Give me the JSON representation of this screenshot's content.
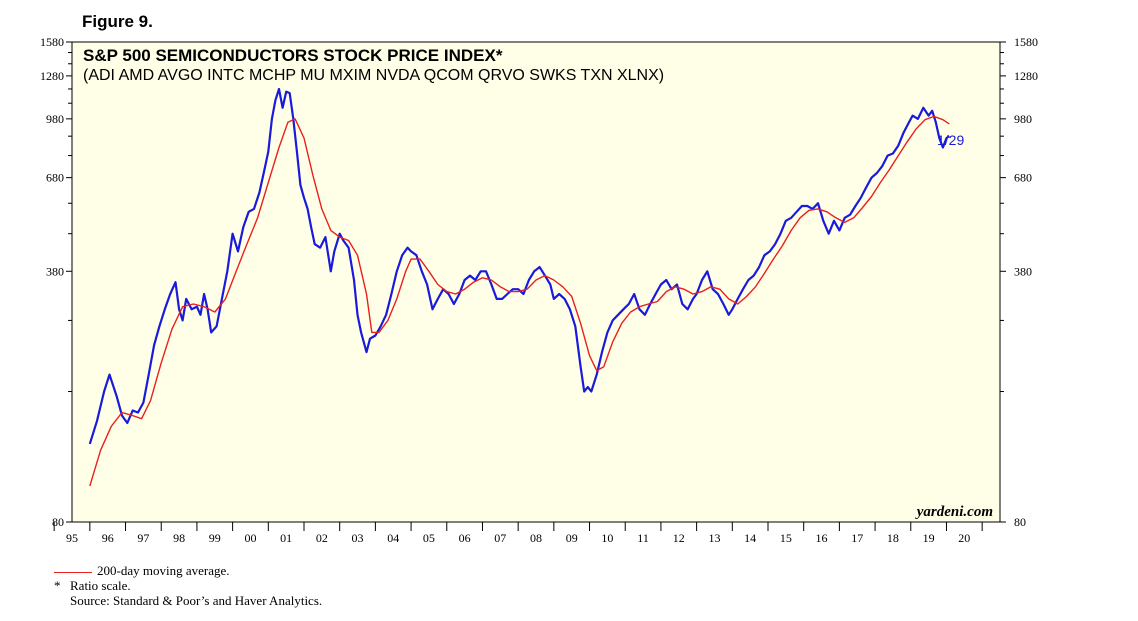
{
  "figure_label": "Figure 9.",
  "source_brand": "yardeni.com",
  "footnotes": {
    "ma_legend": "200-day moving average.",
    "note_mark": "*",
    "note": "Ratio scale.",
    "source": "Source: Standard & Poor’s and Haver Analytics."
  },
  "colors": {
    "price_line": "#1a1adc",
    "ma_line": "#e8201e",
    "plot_background": "#ffffe8"
  },
  "chart_data": {
    "type": "line",
    "title": "S&P 500 SEMICONDUCTORS STOCK PRICE INDEX*",
    "subtitle": "(ADI AMD AVGO INTC MCHP MU MXIM NVDA QCOM QRVO SWKS TXN XLNX)",
    "y_scale": "log",
    "ylim": [
      80,
      1580
    ],
    "y_ticks": [
      80,
      380,
      680,
      980,
      1280,
      1580
    ],
    "y_minor_ticks": [
      180,
      280,
      480,
      580,
      780,
      880,
      1080,
      1180,
      1380,
      1480
    ],
    "xlim": [
      1994.5,
      2020.5
    ],
    "x_tick_labels": [
      "95",
      "96",
      "97",
      "98",
      "99",
      "00",
      "01",
      "02",
      "03",
      "04",
      "05",
      "06",
      "07",
      "08",
      "09",
      "10",
      "11",
      "12",
      "13",
      "14",
      "15",
      "16",
      "17",
      "18",
      "19",
      "20"
    ],
    "annotation": "1/29",
    "series": [
      {
        "name": "",
        "points": [
          [
            1995.0,
            130
          ],
          [
            1995.2,
            150
          ],
          [
            1995.4,
            180
          ],
          [
            1995.55,
            200
          ],
          [
            1995.75,
            175
          ],
          [
            1995.9,
            155
          ],
          [
            1996.05,
            148
          ],
          [
            1996.2,
            160
          ],
          [
            1996.35,
            158
          ],
          [
            1996.5,
            168
          ],
          [
            1996.65,
            200
          ],
          [
            1996.8,
            240
          ],
          [
            1996.95,
            270
          ],
          [
            1997.1,
            300
          ],
          [
            1997.25,
            330
          ],
          [
            1997.4,
            355
          ],
          [
            1997.5,
            300
          ],
          [
            1997.6,
            280
          ],
          [
            1997.7,
            320
          ],
          [
            1997.85,
            300
          ],
          [
            1998.0,
            305
          ],
          [
            1998.1,
            290
          ],
          [
            1998.2,
            330
          ],
          [
            1998.3,
            300
          ],
          [
            1998.4,
            260
          ],
          [
            1998.55,
            270
          ],
          [
            1998.7,
            320
          ],
          [
            1998.85,
            380
          ],
          [
            1999.0,
            480
          ],
          [
            1999.15,
            430
          ],
          [
            1999.3,
            500
          ],
          [
            1999.45,
            550
          ],
          [
            1999.6,
            560
          ],
          [
            1999.75,
            620
          ],
          [
            1999.9,
            720
          ],
          [
            2000.0,
            800
          ],
          [
            2000.1,
            980
          ],
          [
            2000.2,
            1100
          ],
          [
            2000.3,
            1180
          ],
          [
            2000.4,
            1050
          ],
          [
            2000.5,
            1160
          ],
          [
            2000.6,
            1150
          ],
          [
            2000.7,
            980
          ],
          [
            2000.8,
            800
          ],
          [
            2000.9,
            650
          ],
          [
            2001.0,
            600
          ],
          [
            2001.1,
            560
          ],
          [
            2001.2,
            500
          ],
          [
            2001.3,
            450
          ],
          [
            2001.45,
            440
          ],
          [
            2001.6,
            470
          ],
          [
            2001.75,
            380
          ],
          [
            2001.85,
            430
          ],
          [
            2002.0,
            480
          ],
          [
            2002.1,
            460
          ],
          [
            2002.25,
            440
          ],
          [
            2002.4,
            360
          ],
          [
            2002.5,
            290
          ],
          [
            2002.6,
            260
          ],
          [
            2002.75,
            230
          ],
          [
            2002.85,
            250
          ],
          [
            2003.0,
            255
          ],
          [
            2003.15,
            270
          ],
          [
            2003.3,
            290
          ],
          [
            2003.45,
            330
          ],
          [
            2003.6,
            380
          ],
          [
            2003.75,
            420
          ],
          [
            2003.9,
            440
          ],
          [
            2004.0,
            430
          ],
          [
            2004.15,
            420
          ],
          [
            2004.3,
            380
          ],
          [
            2004.45,
            350
          ],
          [
            2004.6,
            300
          ],
          [
            2004.75,
            320
          ],
          [
            2004.9,
            340
          ],
          [
            2005.05,
            330
          ],
          [
            2005.2,
            310
          ],
          [
            2005.35,
            330
          ],
          [
            2005.5,
            360
          ],
          [
            2005.65,
            370
          ],
          [
            2005.8,
            360
          ],
          [
            2005.95,
            380
          ],
          [
            2006.1,
            380
          ],
          [
            2006.25,
            350
          ],
          [
            2006.4,
            320
          ],
          [
            2006.55,
            320
          ],
          [
            2006.7,
            330
          ],
          [
            2006.85,
            340
          ],
          [
            2007.0,
            340
          ],
          [
            2007.15,
            330
          ],
          [
            2007.3,
            360
          ],
          [
            2007.45,
            380
          ],
          [
            2007.6,
            390
          ],
          [
            2007.75,
            370
          ],
          [
            2007.9,
            350
          ],
          [
            2008.0,
            320
          ],
          [
            2008.15,
            330
          ],
          [
            2008.3,
            320
          ],
          [
            2008.45,
            300
          ],
          [
            2008.6,
            270
          ],
          [
            2008.75,
            210
          ],
          [
            2008.85,
            180
          ],
          [
            2008.95,
            185
          ],
          [
            2009.05,
            180
          ],
          [
            2009.2,
            200
          ],
          [
            2009.35,
            230
          ],
          [
            2009.5,
            260
          ],
          [
            2009.65,
            280
          ],
          [
            2009.8,
            290
          ],
          [
            2009.95,
            300
          ],
          [
            2010.1,
            310
          ],
          [
            2010.25,
            330
          ],
          [
            2010.4,
            300
          ],
          [
            2010.55,
            290
          ],
          [
            2010.7,
            310
          ],
          [
            2010.85,
            330
          ],
          [
            2011.0,
            350
          ],
          [
            2011.15,
            360
          ],
          [
            2011.3,
            340
          ],
          [
            2011.45,
            350
          ],
          [
            2011.6,
            310
          ],
          [
            2011.75,
            300
          ],
          [
            2011.9,
            320
          ],
          [
            2012.0,
            330
          ],
          [
            2012.15,
            360
          ],
          [
            2012.3,
            380
          ],
          [
            2012.45,
            340
          ],
          [
            2012.6,
            330
          ],
          [
            2012.75,
            310
          ],
          [
            2012.9,
            290
          ],
          [
            2013.0,
            300
          ],
          [
            2013.15,
            320
          ],
          [
            2013.3,
            340
          ],
          [
            2013.45,
            360
          ],
          [
            2013.6,
            370
          ],
          [
            2013.75,
            390
          ],
          [
            2013.9,
            420
          ],
          [
            2014.05,
            430
          ],
          [
            2014.2,
            450
          ],
          [
            2014.35,
            480
          ],
          [
            2014.5,
            520
          ],
          [
            2014.65,
            530
          ],
          [
            2014.8,
            550
          ],
          [
            2014.95,
            570
          ],
          [
            2015.1,
            570
          ],
          [
            2015.25,
            560
          ],
          [
            2015.4,
            580
          ],
          [
            2015.55,
            520
          ],
          [
            2015.7,
            480
          ],
          [
            2015.85,
            520
          ],
          [
            2016.0,
            490
          ],
          [
            2016.15,
            530
          ],
          [
            2016.3,
            540
          ],
          [
            2016.45,
            570
          ],
          [
            2016.6,
            600
          ],
          [
            2016.75,
            640
          ],
          [
            2016.9,
            680
          ],
          [
            2017.05,
            700
          ],
          [
            2017.2,
            730
          ],
          [
            2017.35,
            780
          ],
          [
            2017.5,
            790
          ],
          [
            2017.65,
            830
          ],
          [
            2017.8,
            900
          ],
          [
            2017.95,
            960
          ],
          [
            2018.05,
            1000
          ],
          [
            2018.2,
            980
          ],
          [
            2018.35,
            1050
          ],
          [
            2018.5,
            1000
          ],
          [
            2018.6,
            1030
          ],
          [
            2018.7,
            960
          ],
          [
            2018.8,
            870
          ],
          [
            2018.9,
            820
          ],
          [
            2019.0,
            870
          ],
          [
            2019.08,
            880
          ]
        ]
      },
      {
        "name": "200-day moving average.",
        "points": [
          [
            1995.0,
            100
          ],
          [
            1995.3,
            125
          ],
          [
            1995.6,
            145
          ],
          [
            1995.9,
            158
          ],
          [
            1996.2,
            155
          ],
          [
            1996.45,
            152
          ],
          [
            1996.7,
            170
          ],
          [
            1997.0,
            215
          ],
          [
            1997.3,
            265
          ],
          [
            1997.6,
            305
          ],
          [
            1997.9,
            310
          ],
          [
            1998.2,
            305
          ],
          [
            1998.5,
            295
          ],
          [
            1998.8,
            320
          ],
          [
            1999.1,
            380
          ],
          [
            1999.4,
            450
          ],
          [
            1999.7,
            530
          ],
          [
            2000.0,
            660
          ],
          [
            2000.3,
            820
          ],
          [
            2000.55,
            960
          ],
          [
            2000.75,
            980
          ],
          [
            2001.0,
            870
          ],
          [
            2001.25,
            690
          ],
          [
            2001.5,
            560
          ],
          [
            2001.75,
            490
          ],
          [
            2002.0,
            470
          ],
          [
            2002.25,
            460
          ],
          [
            2002.5,
            420
          ],
          [
            2002.75,
            330
          ],
          [
            2002.9,
            260
          ],
          [
            2003.1,
            260
          ],
          [
            2003.35,
            280
          ],
          [
            2003.6,
            320
          ],
          [
            2003.85,
            380
          ],
          [
            2004.0,
            410
          ],
          [
            2004.25,
            410
          ],
          [
            2004.5,
            380
          ],
          [
            2004.75,
            350
          ],
          [
            2005.0,
            335
          ],
          [
            2005.25,
            330
          ],
          [
            2005.5,
            340
          ],
          [
            2005.75,
            355
          ],
          [
            2006.0,
            365
          ],
          [
            2006.25,
            360
          ],
          [
            2006.5,
            345
          ],
          [
            2006.75,
            335
          ],
          [
            2007.0,
            335
          ],
          [
            2007.25,
            340
          ],
          [
            2007.5,
            360
          ],
          [
            2007.75,
            370
          ],
          [
            2008.0,
            360
          ],
          [
            2008.25,
            345
          ],
          [
            2008.5,
            325
          ],
          [
            2008.75,
            275
          ],
          [
            2009.0,
            225
          ],
          [
            2009.2,
            205
          ],
          [
            2009.4,
            210
          ],
          [
            2009.65,
            245
          ],
          [
            2009.9,
            275
          ],
          [
            2010.15,
            295
          ],
          [
            2010.4,
            305
          ],
          [
            2010.65,
            310
          ],
          [
            2010.9,
            315
          ],
          [
            2011.15,
            335
          ],
          [
            2011.4,
            345
          ],
          [
            2011.65,
            340
          ],
          [
            2011.9,
            330
          ],
          [
            2012.15,
            335
          ],
          [
            2012.4,
            345
          ],
          [
            2012.65,
            340
          ],
          [
            2012.9,
            320
          ],
          [
            2013.15,
            310
          ],
          [
            2013.4,
            325
          ],
          [
            2013.65,
            345
          ],
          [
            2013.9,
            375
          ],
          [
            2014.15,
            410
          ],
          [
            2014.4,
            445
          ],
          [
            2014.65,
            490
          ],
          [
            2014.9,
            530
          ],
          [
            2015.15,
            555
          ],
          [
            2015.4,
            560
          ],
          [
            2015.65,
            550
          ],
          [
            2015.9,
            530
          ],
          [
            2016.15,
            515
          ],
          [
            2016.4,
            530
          ],
          [
            2016.65,
            565
          ],
          [
            2016.9,
            605
          ],
          [
            2017.15,
            660
          ],
          [
            2017.4,
            715
          ],
          [
            2017.65,
            780
          ],
          [
            2017.9,
            850
          ],
          [
            2018.15,
            920
          ],
          [
            2018.4,
            975
          ],
          [
            2018.65,
            995
          ],
          [
            2018.9,
            975
          ],
          [
            2019.08,
            950
          ]
        ]
      }
    ]
  }
}
